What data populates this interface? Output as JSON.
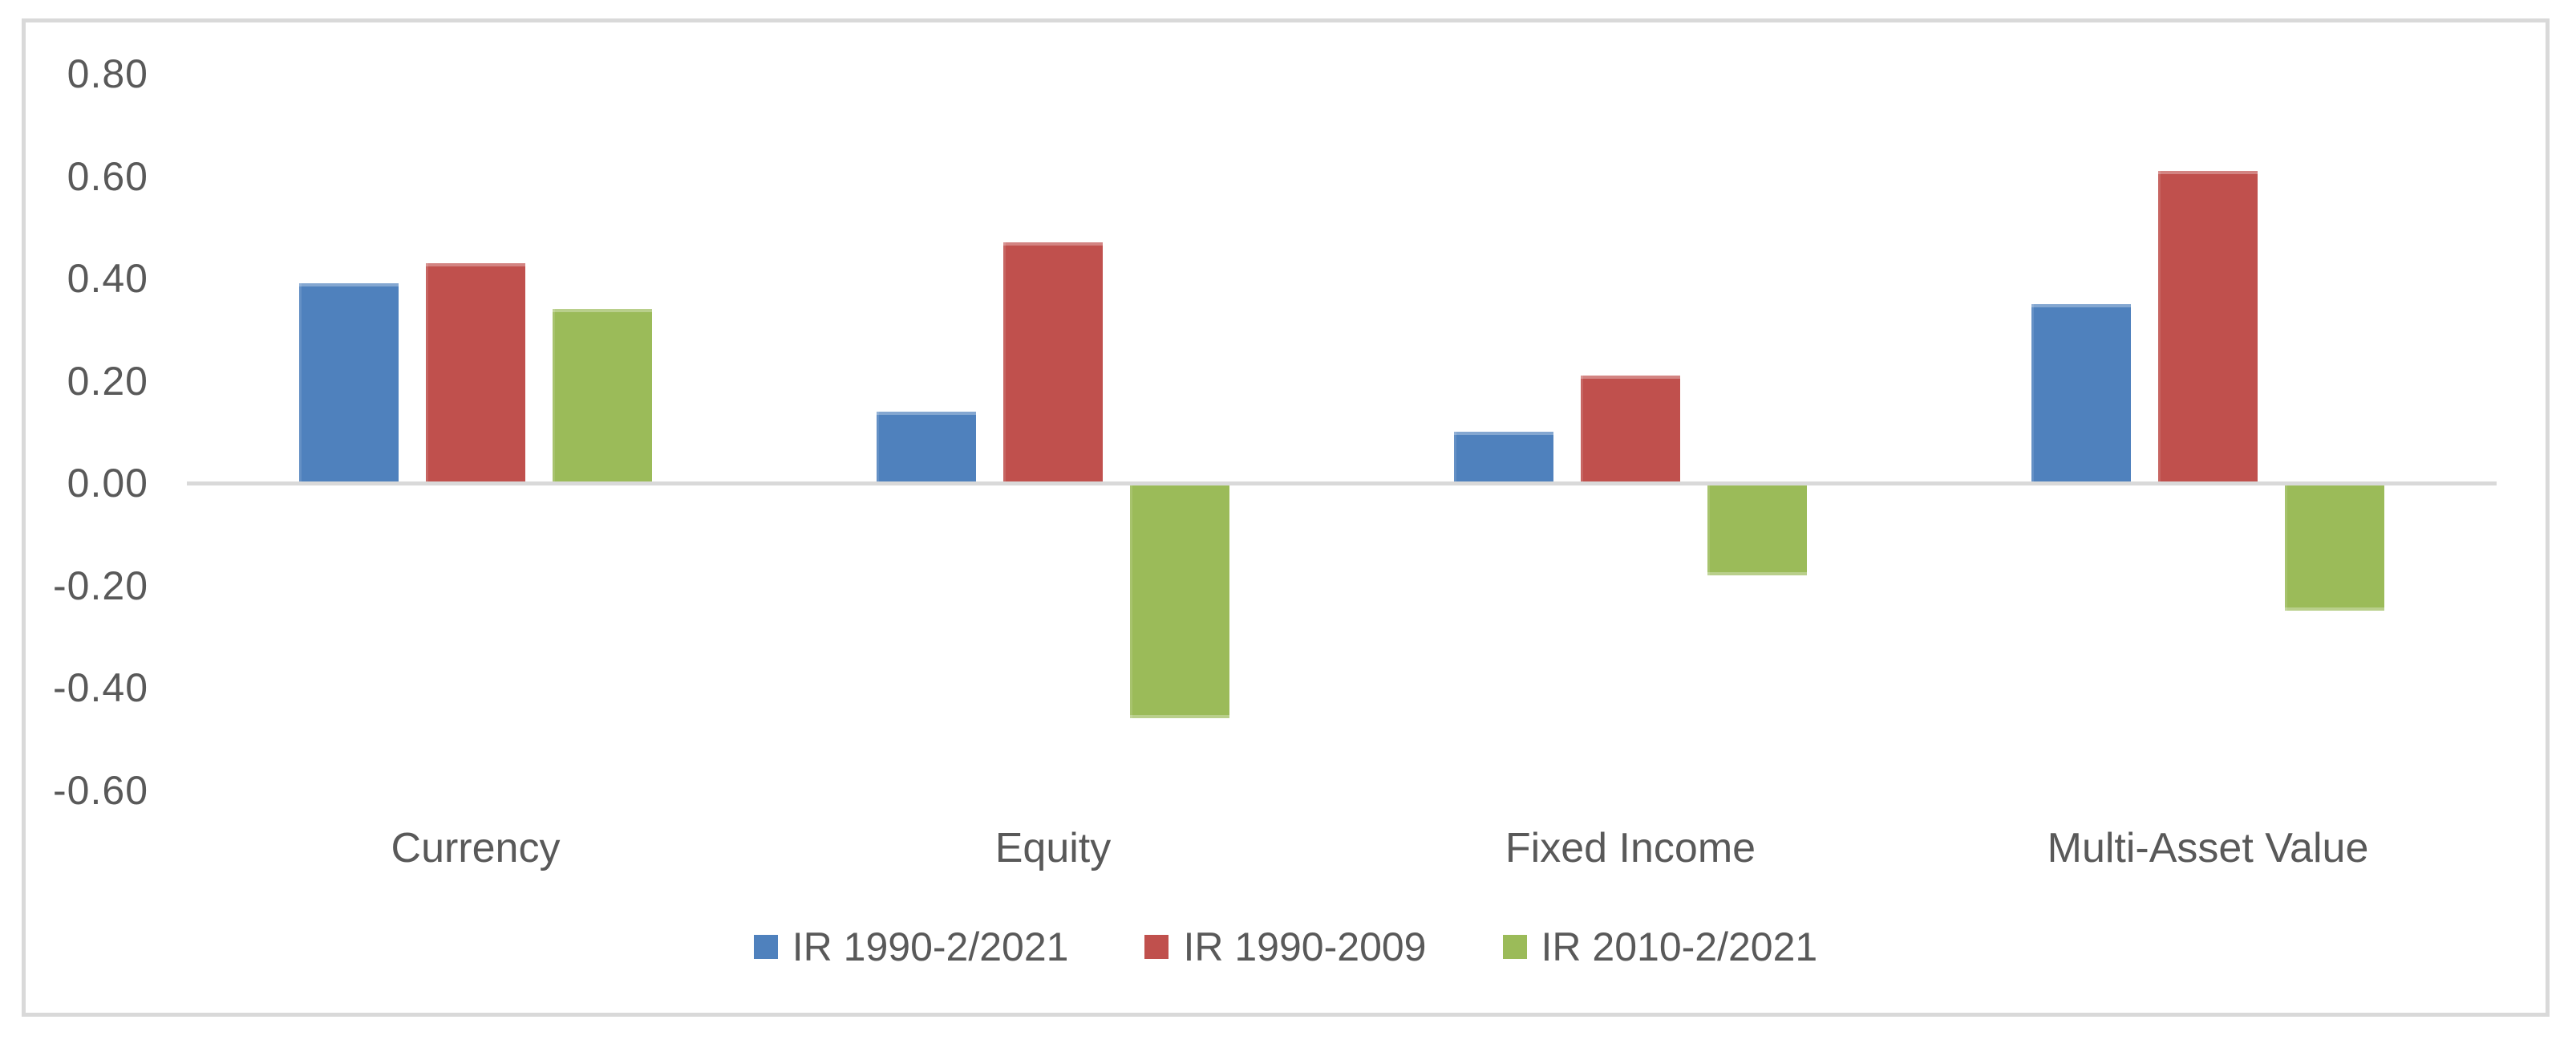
{
  "chart_data": {
    "type": "bar",
    "categories": [
      "Currency",
      "Equity",
      "Fixed Income",
      "Multi-Asset Value"
    ],
    "series": [
      {
        "name": "IR 1990-2/2021",
        "color": "#4F81BD",
        "values": [
          0.39,
          0.14,
          0.1,
          0.35
        ]
      },
      {
        "name": "IR 1990-2009",
        "color": "#C0504D",
        "values": [
          0.43,
          0.47,
          0.21,
          0.61
        ]
      },
      {
        "name": "IR 2010-2/2021",
        "color": "#9BBB59",
        "values": [
          0.34,
          -0.46,
          -0.18,
          -0.25
        ]
      }
    ],
    "yticks": [
      {
        "value": 0.8,
        "label": "0.80"
      },
      {
        "value": 0.6,
        "label": "0.60"
      },
      {
        "value": 0.4,
        "label": "0.40"
      },
      {
        "value": 0.2,
        "label": "0.20"
      },
      {
        "value": 0.0,
        "label": "0.00"
      },
      {
        "value": -0.2,
        "label": "-0.20"
      },
      {
        "value": -0.4,
        "label": "-0.40"
      },
      {
        "value": -0.6,
        "label": "-0.60"
      }
    ],
    "ylim": [
      -0.6,
      0.8
    ],
    "ytick_step": 0.2,
    "xlabel": "",
    "ylabel": "",
    "grid": false,
    "legend_position": "bottom",
    "colors": {
      "axis_line": "#D9D9D9",
      "frame_border": "#D9D9D9",
      "text": "#595959",
      "background": "#FFFFFF"
    }
  }
}
